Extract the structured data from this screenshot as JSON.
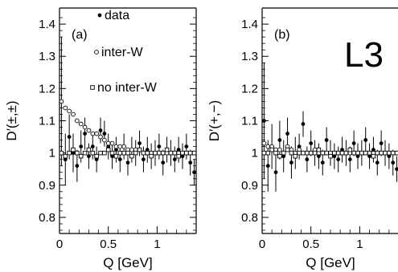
{
  "chart_data": [
    {
      "type": "scatter",
      "panel_label": "(a)",
      "xlabel": "Q [GeV]",
      "ylabel": "D′(±,±)",
      "xlim": [
        0,
        1.4
      ],
      "ylim": [
        0.75,
        1.45
      ],
      "xticks": [
        0,
        0.5,
        1
      ],
      "xtick_labels": [
        "0",
        "0.5",
        "1"
      ],
      "yticks": [
        0.8,
        0.9,
        1,
        1.1,
        1.2,
        1.3,
        1.4
      ],
      "ytick_labels": [
        "0.8",
        "0.9",
        "1",
        "1.1",
        "1.2",
        "1.3",
        "1.4"
      ],
      "legend_position": "top-left",
      "series": [
        {
          "name": "data",
          "marker": "filled-circle",
          "x": [
            0.02,
            0.06,
            0.1,
            0.14,
            0.18,
            0.22,
            0.26,
            0.3,
            0.34,
            0.38,
            0.42,
            0.46,
            0.5,
            0.54,
            0.58,
            0.62,
            0.66,
            0.7,
            0.74,
            0.78,
            0.82,
            0.86,
            0.9,
            0.94,
            0.98,
            1.02,
            1.06,
            1.1,
            1.14,
            1.18,
            1.22,
            1.26,
            1.3,
            1.34,
            1.38
          ],
          "y": [
            1.16,
            0.98,
            1.05,
            1.0,
            0.96,
            1.02,
            1.06,
            0.99,
            1.02,
            0.98,
            1.07,
            1.06,
            1.02,
            0.99,
            1.01,
            0.98,
            1.02,
            0.97,
            1.01,
            1.0,
            1.03,
            0.98,
            1.01,
            0.99,
            1.0,
            1.02,
            0.97,
            1.01,
            1.0,
            0.98,
            1.01,
            0.99,
            1.02,
            0.97,
            0.94
          ],
          "err": [
            0.2,
            0.08,
            0.07,
            0.06,
            0.05,
            0.05,
            0.05,
            0.04,
            0.04,
            0.04,
            0.04,
            0.04,
            0.04,
            0.04,
            0.04,
            0.04,
            0.04,
            0.04,
            0.04,
            0.04,
            0.04,
            0.04,
            0.04,
            0.04,
            0.04,
            0.04,
            0.04,
            0.04,
            0.04,
            0.04,
            0.04,
            0.04,
            0.04,
            0.04,
            0.04
          ]
        },
        {
          "name": "inter-W",
          "marker": "open-circle",
          "x": [
            0.02,
            0.06,
            0.1,
            0.14,
            0.18,
            0.22,
            0.26,
            0.3,
            0.34,
            0.38,
            0.42,
            0.46,
            0.5,
            0.54,
            0.58,
            0.62,
            0.66,
            0.7,
            0.74,
            0.78,
            0.82,
            0.86,
            0.9,
            0.94,
            0.98,
            1.02,
            1.06,
            1.1,
            1.14,
            1.18,
            1.22,
            1.26,
            1.3,
            1.34,
            1.38
          ],
          "y": [
            1.16,
            1.14,
            1.13,
            1.12,
            1.1,
            1.09,
            1.08,
            1.07,
            1.06,
            1.06,
            1.05,
            1.04,
            1.03,
            1.03,
            1.02,
            1.02,
            1.02,
            1.01,
            1.01,
            1.01,
            1.01,
            1.0,
            1.0,
            1.0,
            1.0,
            1.0,
            1.0,
            1.0,
            1.0,
            1.0,
            1.0,
            1.0,
            1.0,
            1.0,
            1.0
          ]
        },
        {
          "name": "no inter-W",
          "marker": "open-square",
          "x": [
            0.02,
            0.06,
            0.1,
            0.14,
            0.18,
            0.22,
            0.26,
            0.3,
            0.34,
            0.38,
            0.42,
            0.46,
            0.5,
            0.54,
            0.58,
            0.62,
            0.66,
            0.7,
            0.74,
            0.78,
            0.82,
            0.86,
            0.9,
            0.94,
            0.98,
            1.02,
            1.06,
            1.1,
            1.14,
            1.18,
            1.22,
            1.26,
            1.3,
            1.34,
            1.38
          ],
          "y": [
            1.0,
            0.99,
            1.0,
            1.01,
            1.0,
            0.99,
            1.0,
            1.01,
            1.0,
            0.99,
            1.0,
            1.0,
            1.01,
            1.0,
            0.99,
            1.0,
            1.0,
            1.0,
            0.99,
            1.0,
            1.01,
            1.0,
            1.0,
            0.99,
            1.0,
            1.0,
            1.0,
            1.01,
            1.0,
            1.0,
            0.99,
            1.0,
            1.0,
            1.0,
            1.0
          ]
        }
      ]
    },
    {
      "type": "scatter",
      "panel_label": "(b)",
      "xlabel": "Q [GeV]",
      "ylabel": "D′(+,−)",
      "xlim": [
        0,
        1.4
      ],
      "ylim": [
        0.75,
        1.45
      ],
      "xticks": [
        0,
        0.5,
        1
      ],
      "xtick_labels": [
        "0",
        "0.5",
        "1"
      ],
      "yticks": [
        0.8,
        0.9,
        1,
        1.1,
        1.2,
        1.3,
        1.4
      ],
      "ytick_labels": [
        "0.8",
        "0.9",
        "1",
        "1.1",
        "1.2",
        "1.3",
        "1.4"
      ],
      "series": [
        {
          "name": "data",
          "marker": "filled-circle",
          "x": [
            0.02,
            0.06,
            0.1,
            0.14,
            0.18,
            0.22,
            0.26,
            0.3,
            0.34,
            0.38,
            0.42,
            0.46,
            0.5,
            0.54,
            0.58,
            0.62,
            0.66,
            0.7,
            0.74,
            0.78,
            0.82,
            0.86,
            0.9,
            0.94,
            0.98,
            1.02,
            1.06,
            1.1,
            1.14,
            1.18,
            1.22,
            1.26,
            1.3,
            1.34,
            1.38
          ],
          "y": [
            1.1,
            0.96,
            1.02,
            0.94,
            1.04,
            0.99,
            1.06,
            0.97,
            1.0,
            1.02,
            1.09,
            0.98,
            1.03,
            1.0,
            0.99,
            0.97,
            1.04,
            1.0,
            0.99,
            0.98,
            1.01,
            1.0,
            0.98,
            1.03,
            0.99,
            1.0,
            1.04,
            0.99,
            1.01,
            0.97,
            1.03,
            1.0,
            0.99,
            0.97,
            0.95
          ],
          "err": [
            0.18,
            0.08,
            0.07,
            0.06,
            0.06,
            0.05,
            0.05,
            0.05,
            0.05,
            0.04,
            0.04,
            0.04,
            0.04,
            0.04,
            0.04,
            0.04,
            0.04,
            0.04,
            0.04,
            0.04,
            0.04,
            0.04,
            0.04,
            0.04,
            0.04,
            0.04,
            0.04,
            0.04,
            0.04,
            0.04,
            0.04,
            0.04,
            0.04,
            0.04,
            0.04
          ]
        },
        {
          "name": "inter-W",
          "marker": "open-circle",
          "x": [
            0.02,
            0.06,
            0.1,
            0.14,
            0.18,
            0.22,
            0.26,
            0.3,
            0.34,
            0.38,
            0.42,
            0.46,
            0.5,
            0.54,
            0.58,
            0.62,
            0.66,
            0.7,
            0.74,
            0.78,
            0.82,
            0.86,
            0.9,
            0.94,
            0.98,
            1.02,
            1.06,
            1.1,
            1.14,
            1.18,
            1.22,
            1.26,
            1.3,
            1.34,
            1.38
          ],
          "y": [
            1.03,
            1.02,
            1.02,
            1.01,
            1.01,
            1.0,
            1.02,
            1.01,
            1.0,
            1.01,
            1.0,
            1.0,
            1.0,
            1.01,
            1.0,
            1.0,
            1.0,
            1.0,
            1.0,
            1.0,
            1.0,
            1.0,
            1.0,
            1.0,
            1.0,
            1.0,
            1.0,
            1.0,
            1.0,
            1.0,
            1.0,
            1.0,
            1.0,
            1.0,
            1.0
          ]
        },
        {
          "name": "no inter-W",
          "marker": "open-square",
          "x": [
            0.02,
            0.06,
            0.1,
            0.14,
            0.18,
            0.22,
            0.26,
            0.3,
            0.34,
            0.38,
            0.42,
            0.46,
            0.5,
            0.54,
            0.58,
            0.62,
            0.66,
            0.7,
            0.74,
            0.78,
            0.82,
            0.86,
            0.9,
            0.94,
            0.98,
            1.02,
            1.06,
            1.1,
            1.14,
            1.18,
            1.22,
            1.26,
            1.3,
            1.34,
            1.38
          ],
          "y": [
            1.0,
            1.0,
            1.01,
            1.0,
            0.99,
            1.0,
            1.01,
            1.0,
            0.99,
            1.0,
            1.0,
            1.0,
            1.0,
            1.0,
            1.01,
            1.0,
            1.0,
            0.99,
            1.0,
            1.0,
            1.0,
            1.0,
            1.01,
            1.0,
            1.0,
            1.0,
            1.0,
            1.0,
            0.99,
            1.0,
            1.0,
            1.0,
            1.0,
            1.0,
            1.0
          ]
        }
      ]
    }
  ],
  "logo_text": "L3"
}
